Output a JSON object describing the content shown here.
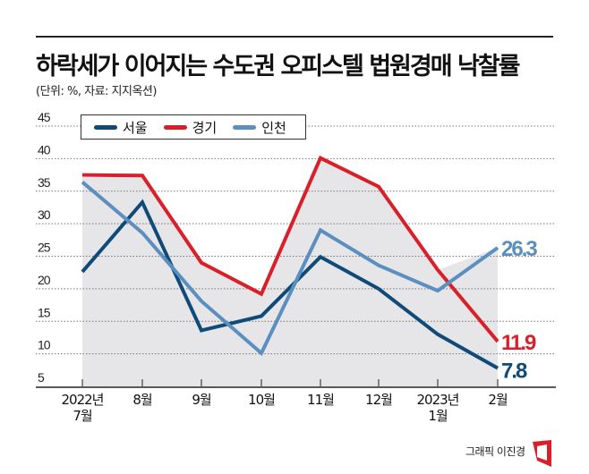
{
  "title": "하락세가 이어지는 수도권 오피스텔 법원경매 낙찰률",
  "subtitle": "(단위: %, 자료: 지지옥션)",
  "credit": "그래픽 이진경",
  "chart_data": {
    "type": "line",
    "title": "하락세가 이어지는 수도권 오피스텔 법원경매 낙찰률",
    "ylabel": "%",
    "ylim": [
      5,
      45
    ],
    "yticks": [
      45,
      40,
      35,
      30,
      25,
      20,
      15,
      10,
      5
    ],
    "grid": true,
    "legend": "top-left",
    "categories": [
      [
        "2022년",
        "7월"
      ],
      [
        "8월"
      ],
      [
        "9월"
      ],
      [
        "10월"
      ],
      [
        "11월"
      ],
      [
        "12월"
      ],
      [
        "2023년",
        "1월"
      ],
      [
        "2월"
      ]
    ],
    "series": [
      {
        "name": "서울",
        "color": "#0f4a78",
        "values": [
          22.6,
          33.3,
          13.6,
          15.8,
          24.9,
          20.0,
          13.0,
          7.8
        ],
        "end_label": "7.8"
      },
      {
        "name": "경기",
        "color": "#d9202a",
        "values": [
          37.5,
          37.4,
          24.0,
          19.2,
          40.1,
          35.7,
          22.9,
          11.9
        ],
        "end_label": "11.9"
      },
      {
        "name": "인천",
        "color": "#5b8fbf",
        "values": [
          36.4,
          28.6,
          18.1,
          10.1,
          29.0,
          23.6,
          19.7,
          26.3
        ],
        "end_label": "26.3"
      }
    ],
    "shade_color": "#e6e6e8"
  }
}
